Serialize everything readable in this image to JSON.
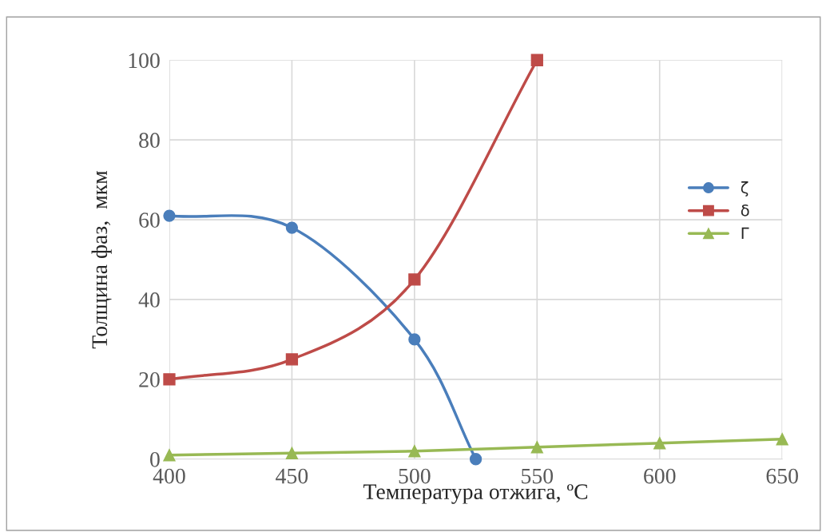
{
  "chart_data": {
    "type": "line",
    "xlabel": "Температура отжига, ºС",
    "ylabel": "Толщина фаз,  мкм",
    "xlim": [
      400,
      650
    ],
    "xticks": [
      400,
      450,
      500,
      550,
      600,
      650
    ],
    "ylim": [
      0,
      100
    ],
    "yticks": [
      0,
      20,
      40,
      60,
      80,
      100
    ],
    "grid": true,
    "legend": "right",
    "line_style": "solid",
    "series": [
      {
        "name": "ζ",
        "color": "#4a7ebb",
        "marker": "circle",
        "x": [
          400,
          450,
          500,
          525
        ],
        "values": [
          61,
          58,
          30,
          0
        ]
      },
      {
        "name": "δ",
        "color": "#be4b48",
        "marker": "square",
        "x": [
          400,
          450,
          500,
          550
        ],
        "values": [
          20,
          25,
          45,
          100
        ]
      },
      {
        "name": "Г",
        "color": "#98b954",
        "marker": "triangle",
        "x": [
          400,
          450,
          500,
          550,
          600,
          650
        ],
        "values": [
          1,
          1.5,
          2,
          3,
          4,
          5
        ]
      }
    ]
  }
}
